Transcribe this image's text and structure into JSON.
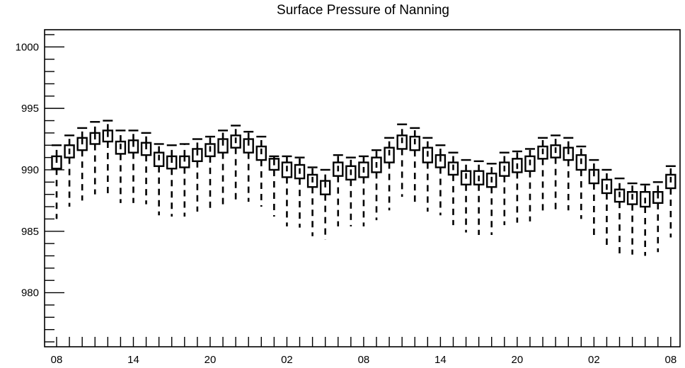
{
  "chart_data": {
    "type": "box",
    "title": "Surface Pressure of Nanning",
    "xlabel": "",
    "ylabel": "",
    "ylim": [
      975.6,
      1001.4
    ],
    "y_ticks": [
      980,
      985,
      990,
      995,
      1000
    ],
    "x_tick_labels": [
      "08",
      "14",
      "20",
      "02",
      "08",
      "14",
      "20",
      "02",
      "08"
    ],
    "x_tick_positions_hours": [
      0,
      6,
      12,
      18,
      24,
      30,
      36,
      42,
      48
    ],
    "series": [
      {
        "x_hours": [
          0,
          1,
          2,
          3,
          4,
          5,
          6,
          7,
          8,
          9,
          10,
          11,
          12,
          13,
          14,
          15,
          16,
          17,
          18,
          19,
          20,
          21,
          22,
          23,
          24,
          25,
          26,
          27,
          28,
          29,
          30,
          31,
          32,
          33,
          34,
          35,
          36,
          37,
          38,
          39,
          40,
          41,
          42,
          43,
          44,
          45,
          46,
          47,
          48
        ],
        "q1": [
          990.1,
          991.0,
          991.6,
          992.1,
          992.3,
          991.3,
          991.4,
          991.2,
          990.3,
          990.1,
          990.2,
          990.7,
          991.1,
          991.4,
          991.8,
          991.4,
          990.8,
          990.0,
          989.4,
          989.3,
          988.6,
          988.0,
          989.5,
          989.2,
          989.4,
          989.8,
          990.6,
          991.7,
          991.6,
          990.6,
          990.2,
          989.6,
          988.8,
          988.8,
          988.6,
          989.5,
          989.8,
          989.9,
          990.9,
          991.0,
          990.8,
          990.0,
          988.9,
          988.1,
          987.4,
          987.2,
          987.0,
          987.3,
          988.5
        ],
        "median": [
          990.8,
          991.5,
          992.3,
          992.7,
          992.9,
          991.9,
          992.1,
          991.9,
          991.0,
          990.8,
          990.9,
          991.4,
          991.7,
          992.2,
          992.4,
          992.2,
          991.5,
          990.6,
          990.1,
          989.9,
          989.2,
          988.8,
          990.1,
          989.8,
          990.0,
          990.4,
          991.4,
          992.4,
          992.3,
          991.3,
          990.9,
          990.2,
          989.5,
          989.3,
          989.2,
          990.1,
          990.3,
          990.6,
          991.5,
          991.6,
          991.5,
          990.7,
          989.7,
          988.6,
          988.0,
          987.8,
          987.5,
          987.9,
          989.2
        ],
        "q3": [
          991.1,
          992.0,
          992.6,
          993.0,
          993.2,
          992.3,
          992.4,
          992.2,
          991.4,
          991.1,
          991.1,
          991.7,
          992.1,
          992.5,
          992.8,
          992.5,
          991.9,
          990.9,
          990.6,
          990.4,
          989.6,
          989.1,
          990.6,
          990.3,
          990.6,
          991.0,
          991.8,
          992.8,
          992.7,
          991.8,
          991.2,
          990.6,
          989.9,
          989.9,
          989.7,
          990.6,
          990.9,
          991.1,
          991.9,
          992.0,
          991.8,
          991.2,
          990.0,
          989.2,
          988.4,
          988.2,
          988.2,
          988.2,
          989.6
        ],
        "min": [
          986.0,
          987.0,
          987.5,
          988.0,
          988.0,
          987.3,
          987.3,
          987.2,
          986.3,
          986.2,
          986.2,
          986.6,
          986.9,
          987.2,
          987.4,
          987.4,
          987.0,
          986.2,
          985.4,
          985.3,
          984.6,
          984.3,
          985.4,
          985.4,
          985.4,
          985.9,
          986.7,
          987.8,
          987.2,
          986.6,
          986.3,
          985.5,
          984.9,
          984.7,
          984.7,
          985.5,
          985.7,
          985.8,
          986.4,
          986.7,
          986.7,
          986.0,
          984.3,
          983.6,
          983.2,
          983.1,
          983.0,
          983.3,
          984.5
        ],
        "max": [
          992.0,
          992.8,
          993.4,
          993.9,
          994.0,
          993.2,
          993.2,
          993.0,
          992.1,
          992.0,
          992.1,
          992.5,
          992.7,
          993.2,
          993.6,
          993.1,
          992.7,
          991.1,
          991.1,
          991.0,
          990.2,
          990.0,
          991.2,
          991.0,
          991.1,
          991.6,
          992.6,
          993.7,
          993.4,
          992.6,
          992.0,
          991.4,
          990.8,
          990.7,
          990.5,
          991.4,
          991.5,
          991.7,
          992.6,
          992.8,
          992.6,
          991.9,
          990.8,
          990.0,
          989.3,
          988.9,
          988.8,
          989.0,
          990.3
        ]
      }
    ],
    "grid": false,
    "legend": "none"
  }
}
